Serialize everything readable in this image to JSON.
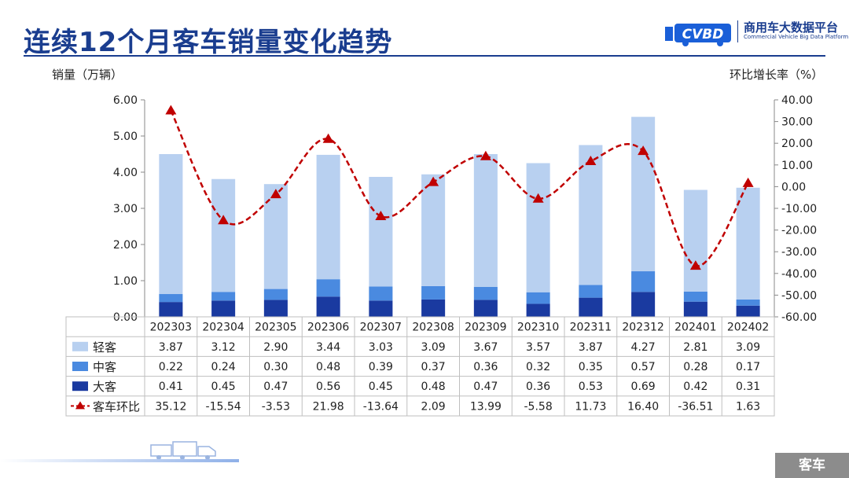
{
  "title": "连续12个月客车销量变化趋势",
  "logo": {
    "mark": "CVBD",
    "cn": "商用车大数据平台",
    "en": "Commercial Vehicle Big Data Platform"
  },
  "footer_tag": "客车",
  "colors": {
    "light": "#b8d0f0",
    "mid": "#4a8ae0",
    "dark": "#1a3aa0",
    "line": "#c00000",
    "title": "#1a3d8f"
  },
  "chart_data": {
    "type": "bar",
    "stacked": true,
    "categories": [
      "202303",
      "202304",
      "202305",
      "202306",
      "202307",
      "202308",
      "202309",
      "202310",
      "202311",
      "202312",
      "202401",
      "202402"
    ],
    "ylabel": "销量（万辆）",
    "y2label": "环比增长率（%）",
    "ylim": [
      0,
      6
    ],
    "yticks": [
      "6.00",
      "5.00",
      "4.00",
      "3.00",
      "2.00",
      "1.00",
      "0.00"
    ],
    "y2lim": [
      -60,
      40
    ],
    "y2ticks": [
      "40.00",
      "30.00",
      "20.00",
      "10.00",
      "0.00",
      "-10.00",
      "-20.00",
      "-30.00",
      "-40.00",
      "-50.00",
      "-60.00"
    ],
    "series": [
      {
        "name": "大客",
        "values": [
          0.41,
          0.45,
          0.47,
          0.56,
          0.45,
          0.48,
          0.47,
          0.36,
          0.53,
          0.69,
          0.42,
          0.31
        ],
        "labels": [
          "0.41",
          "0.45",
          "0.47",
          "0.56",
          "0.45",
          "0.48",
          "0.47",
          "0.36",
          "0.53",
          "0.69",
          "0.42",
          "0.31"
        ]
      },
      {
        "name": "中客",
        "values": [
          0.22,
          0.24,
          0.3,
          0.48,
          0.39,
          0.37,
          0.36,
          0.32,
          0.35,
          0.57,
          0.28,
          0.17
        ],
        "labels": [
          "0.22",
          "0.24",
          "0.30",
          "0.48",
          "0.39",
          "0.37",
          "0.36",
          "0.32",
          "0.35",
          "0.57",
          "0.28",
          "0.17"
        ]
      },
      {
        "name": "轻客",
        "values": [
          3.87,
          3.12,
          2.9,
          3.44,
          3.03,
          3.09,
          3.67,
          3.57,
          3.87,
          4.27,
          2.81,
          3.09
        ],
        "labels": [
          "3.87",
          "3.12",
          "2.90",
          "3.44",
          "3.03",
          "3.09",
          "3.67",
          "3.57",
          "3.87",
          "4.27",
          "2.81",
          "3.09"
        ]
      }
    ],
    "line_series": {
      "name": "客车环比",
      "axis": "right",
      "values": [
        35.12,
        -15.54,
        -3.53,
        21.98,
        -13.64,
        2.09,
        13.99,
        -5.58,
        11.73,
        16.4,
        -36.51,
        1.63
      ],
      "labels": [
        "35.12",
        "-15.54",
        "-3.53",
        "21.98",
        "-13.64",
        "2.09",
        "13.99",
        "-5.58",
        "11.73",
        "16.40",
        "-36.51",
        "1.63"
      ]
    },
    "table_rows": [
      "轻客",
      "中客",
      "大客",
      "客车环比"
    ],
    "grid": false
  }
}
